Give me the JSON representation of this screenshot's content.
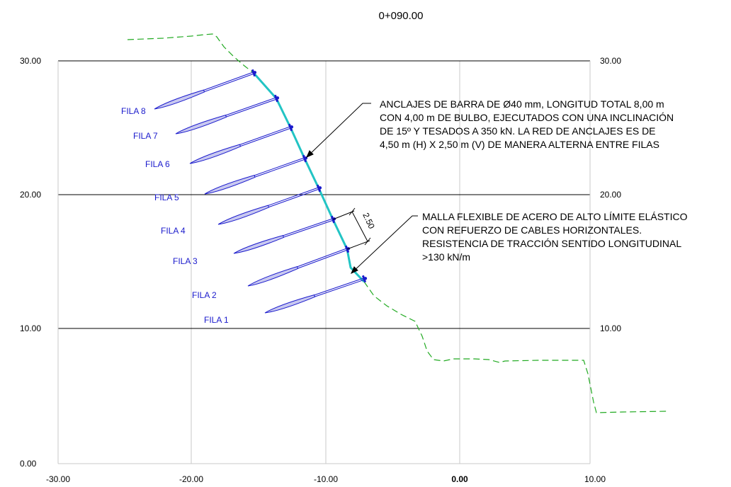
{
  "title": "0+090.00",
  "axes": {
    "y_ticks": [
      "30.00",
      "20.00",
      "10.00",
      "0.00"
    ],
    "y_ticks_right": [
      "30.00",
      "20.00",
      "10.00"
    ],
    "x_ticks": [
      "-30.00",
      "-20.00",
      "-10.00",
      "0.00",
      "10.00"
    ]
  },
  "rows": [
    {
      "label": "FILA 8"
    },
    {
      "label": "FILA 7"
    },
    {
      "label": "FILA 6"
    },
    {
      "label": "FILA 5"
    },
    {
      "label": "FILA 4"
    },
    {
      "label": "FILA 3"
    },
    {
      "label": "FILA 2"
    },
    {
      "label": "FILA 1"
    }
  ],
  "spacing_dimension": "2.50",
  "annotations": {
    "anchors": [
      "ANCLAJES DE BARRA DE Ø40 mm, LONGITUD TOTAL 8,00 m",
      "CON 4,00 m DE BULBO, EJECUTADOS CON UNA INCLINACIÓN",
      "DE 15º Y TESADOS A 350 kN. LA RED DE ANCLAJES ES DE",
      "4,50 m (H) X 2,50 m (V) DE MANERA ALTERNA ENTRE FILAS"
    ],
    "mesh": [
      "MALLA FLEXIBLE DE ACERO DE ALTO LÍMITE ELÁSTICO",
      "CON REFUERZO DE CABLES HORIZONTALES.",
      "RESISTENCIA DE TRACCIÓN SENTIDO LONGITUDINAL",
      ">130 kN/m"
    ]
  },
  "colors": {
    "terrain": "#22aa22",
    "mesh": "#22c4c4",
    "anchor": "#1a1acc",
    "bulb_fill": "#c8c8f0",
    "grid": "#c8c8c8"
  }
}
